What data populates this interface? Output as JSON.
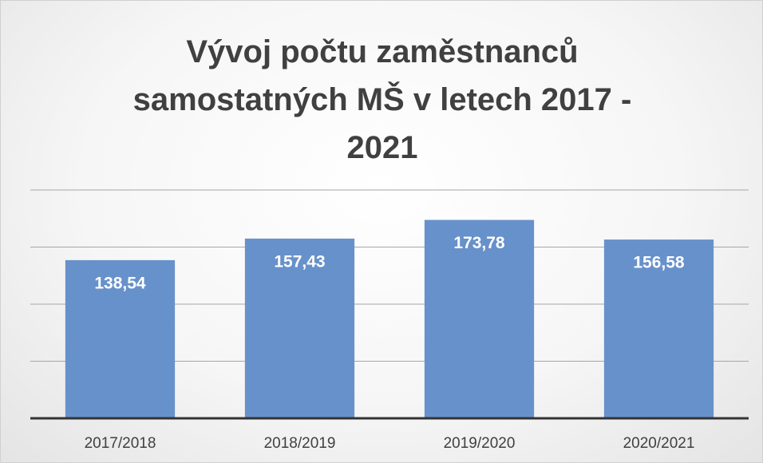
{
  "chart_data": {
    "type": "bar",
    "title": "Vývoj počtu zaměstnanců samostatných MŠ v letech 2017 - 2021",
    "categories": [
      "2017/2018",
      "2018/2019",
      "2019/2020",
      "2020/2021"
    ],
    "values": [
      138.54,
      157.43,
      173.78,
      156.58
    ],
    "value_labels": [
      "138,54",
      "157,43",
      "173,78",
      "156,58"
    ],
    "color": "#6791ca",
    "ylim": [
      0,
      200
    ],
    "yticks": [
      0,
      50,
      100,
      150,
      200
    ],
    "grid": true
  }
}
